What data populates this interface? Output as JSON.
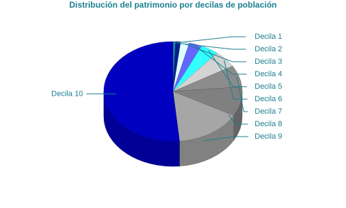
{
  "chart_data": {
    "type": "pie3d",
    "title": "Distribución del patrimonio por decilas de población",
    "categories": [
      "Decila 1",
      "Decila 2",
      "Decila 3",
      "Decila 4",
      "Decila 5",
      "Decila 6",
      "Decila 7",
      "Decila 8",
      "Decila 9",
      "Decila 10"
    ],
    "values": [
      0.6,
      1.2,
      2.0,
      3.0,
      4.2,
      5.5,
      7.0,
      9.5,
      15.5,
      51.5
    ],
    "colors": [
      "#1a8fa0",
      "#00208a",
      "#e0ffff",
      "#6666ff",
      "#33ffff",
      "#d3d3d3",
      "#8c8c8c",
      "#808080",
      "#a6a6a6",
      "#0000c0"
    ]
  }
}
